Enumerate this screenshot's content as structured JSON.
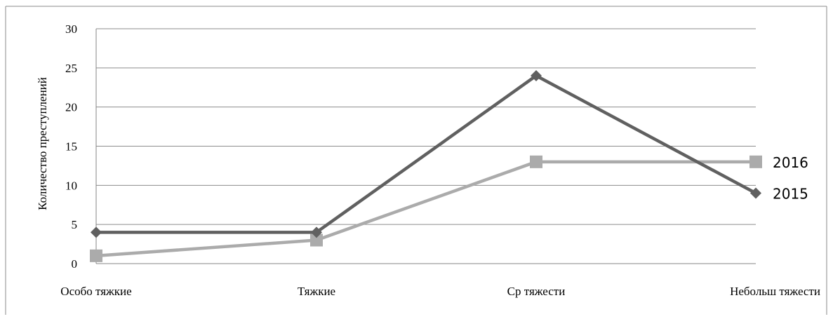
{
  "chart_data": {
    "type": "line",
    "ylabel": "Количество преступлений",
    "ylim": [
      0,
      30
    ],
    "yticks": [
      0,
      5,
      10,
      15,
      20,
      25,
      30
    ],
    "grid": true,
    "categories": [
      "Особо тяжкие",
      "Тяжкие",
      "Ср тяжести",
      "Небольш тяжести"
    ],
    "series": [
      {
        "name": "2015",
        "values": [
          4,
          4,
          24,
          9
        ],
        "color": "#606060",
        "marker": "diamond"
      },
      {
        "name": "2016",
        "values": [
          1,
          3,
          13,
          13
        ],
        "color": "#ababab",
        "marker": "square"
      }
    ]
  }
}
